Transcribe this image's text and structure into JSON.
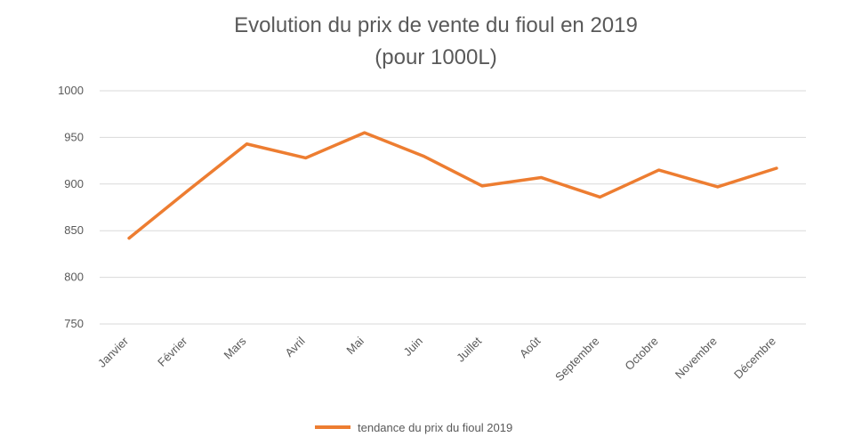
{
  "chart_data": {
    "type": "line",
    "title": "Evolution du prix de vente du fioul en 2019",
    "subtitle": "(pour 1000L)",
    "xlabel": "",
    "ylabel": "",
    "categories": [
      "Janvier",
      "Février",
      "Mars",
      "Avril",
      "Mai",
      "Juin",
      "Juillet",
      "Août",
      "Septembre",
      "Octobre",
      "Novembre",
      "Décembre"
    ],
    "series": [
      {
        "name": "tendance du prix du fioul 2019",
        "color": "#ED7D31",
        "values": [
          842,
          893,
          943,
          928,
          955,
          930,
          898,
          907,
          886,
          915,
          897,
          917
        ]
      }
    ],
    "ylim": [
      750,
      1000
    ],
    "yticks": [
      750,
      800,
      850,
      900,
      950,
      1000
    ],
    "grid": true,
    "legend_position": "bottom"
  }
}
